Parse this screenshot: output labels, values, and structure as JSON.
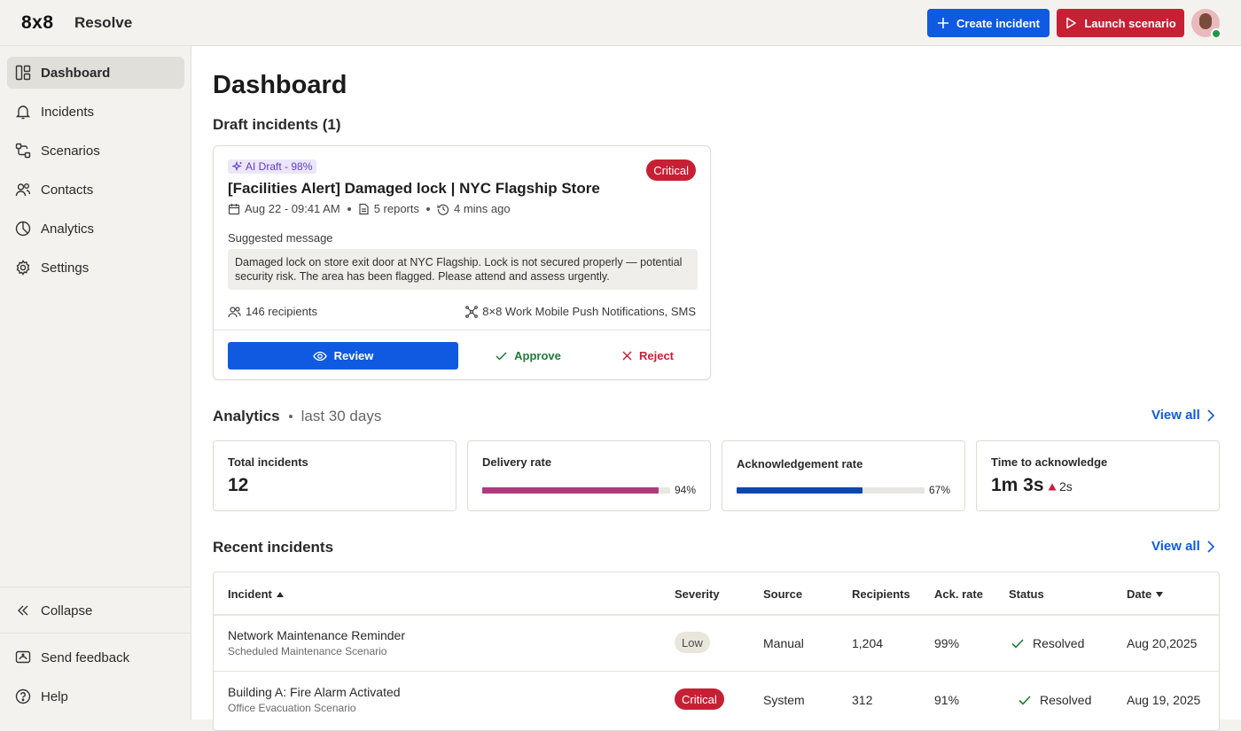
{
  "header": {
    "logo": "8x8",
    "app_name": "Resolve",
    "create_label": "Create incident",
    "launch_label": "Launch scenario",
    "colors": {
      "primary": "#0f5ae0",
      "danger": "#c62035"
    }
  },
  "sidebar": {
    "items": [
      {
        "label": "Dashboard",
        "icon": "dashboard-icon",
        "active": true
      },
      {
        "label": "Incidents",
        "icon": "bell-icon"
      },
      {
        "label": "Scenarios",
        "icon": "scenarios-icon"
      },
      {
        "label": "Contacts",
        "icon": "contacts-icon"
      },
      {
        "label": "Analytics",
        "icon": "analytics-icon"
      },
      {
        "label": "Settings",
        "icon": "gear-icon"
      }
    ],
    "collapse_label": "Collapse",
    "feedback_label": "Send feedback",
    "help_label": "Help"
  },
  "main": {
    "title": "Dashboard",
    "drafts_title": "Draft incidents (1)",
    "draft": {
      "ai_badge": "AI Draft - 98%",
      "severity": "Critical",
      "title": "[Facilities Alert] Damaged lock | NYC Flagship Store",
      "date": "Aug 22 - 09:41 AM",
      "reports": "5 reports",
      "age": "4 mins ago",
      "suggested_label": "Suggested message",
      "suggested_message": "Damaged lock on store exit door at NYC Flagship. Lock is not secured properly — potential security risk. The area has been flagged. Please attend and assess urgently.",
      "recipients": "146 recipients",
      "channels": "8×8 Work Mobile Push Notifications, SMS",
      "review_label": "Review",
      "approve_label": "Approve",
      "reject_label": "Reject"
    },
    "analytics": {
      "title": "Analytics",
      "period": "last 30 days",
      "view_all": "View all",
      "kpis": {
        "total": {
          "label": "Total incidents",
          "value": "12"
        },
        "delivery": {
          "label": "Delivery rate",
          "value": "94%",
          "fraction": 0.94,
          "color": "#b03a7e"
        },
        "ack": {
          "label": "Acknowledgement rate",
          "value": "67%",
          "fraction": 0.67,
          "color": "#0c46b0"
        },
        "tta": {
          "label": "Time to acknowledge",
          "value": "1m 3s",
          "delta": "2s",
          "delta_color": "#c62035"
        }
      }
    },
    "recent": {
      "title": "Recent incidents",
      "view_all": "View all",
      "columns": [
        "Incident",
        "Severity",
        "Source",
        "Recipients",
        "Ack. rate",
        "Status",
        "Date"
      ],
      "rows": [
        {
          "name": "Network Maintenance Reminder",
          "scenario": "Scheduled Maintenance Scenario",
          "severity": "Low",
          "source": "Manual",
          "recipients": "1,204",
          "ack": "99%",
          "status": "Resolved",
          "date": "Aug 20,2025"
        },
        {
          "name": "Building A: Fire Alarm Activated",
          "scenario": "Office Evacuation Scenario",
          "severity": "Critical",
          "source": "System",
          "recipients": "312",
          "ack": "91%",
          "status": "Resolved",
          "date": "Aug 19, 2025"
        }
      ]
    }
  }
}
